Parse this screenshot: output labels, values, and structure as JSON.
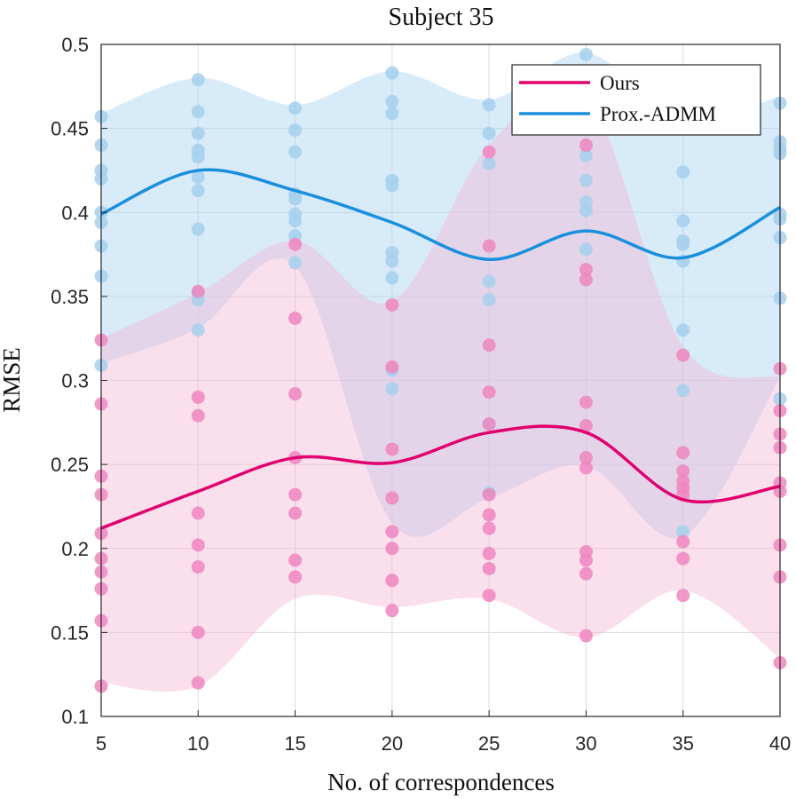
{
  "chart_data": {
    "type": "line",
    "title": "Subject 35",
    "xlabel": "No. of correspondences",
    "ylabel": "RMSE",
    "xlim": [
      5,
      40
    ],
    "ylim": [
      0.1,
      0.5
    ],
    "xticks": [
      5,
      10,
      15,
      20,
      25,
      30,
      35,
      40
    ],
    "yticks": [
      0.1,
      0.15,
      0.2,
      0.25,
      0.3,
      0.35,
      0.4,
      0.45,
      0.5
    ],
    "ytick_labels": [
      "0.1",
      "0.15",
      "0.2",
      "0.25",
      "0.3",
      "0.35",
      "0.4",
      "0.45",
      "0.5"
    ],
    "grid": true,
    "legend_position": "top-right",
    "x": [
      5,
      10,
      15,
      20,
      25,
      30,
      35,
      40
    ],
    "series": [
      {
        "name": "Prox.-ADMM",
        "color": "#1a8fdc",
        "fill_color": "#a9d3f2",
        "point_color": "#a6d0ec",
        "mean": [
          0.399,
          0.425,
          0.413,
          0.394,
          0.372,
          0.389,
          0.373,
          0.403
        ],
        "band_upper": [
          0.459,
          0.48,
          0.464,
          0.484,
          0.467,
          0.495,
          0.455,
          0.469
        ],
        "band_lower": [
          0.31,
          0.331,
          0.368,
          0.215,
          0.23,
          0.249,
          0.207,
          0.302
        ],
        "points": [
          [
            0.457,
            0.44,
            0.425,
            0.42,
            0.4,
            0.394,
            0.38,
            0.362,
            0.309
          ],
          [
            0.479,
            0.46,
            0.447,
            0.437,
            0.433,
            0.421,
            0.413,
            0.39,
            0.352,
            0.348,
            0.33
          ],
          [
            0.462,
            0.449,
            0.436,
            0.411,
            0.408,
            0.399,
            0.395,
            0.386,
            0.37
          ],
          [
            0.483,
            0.466,
            0.459,
            0.419,
            0.416,
            0.376,
            0.371,
            0.361,
            0.306,
            0.295
          ],
          [
            0.464,
            0.447,
            0.429,
            0.359,
            0.348,
            0.274,
            0.233
          ],
          [
            0.494,
            0.434,
            0.419,
            0.406,
            0.401,
            0.378
          ],
          [
            0.424,
            0.395,
            0.383,
            0.381,
            0.371,
            0.33,
            0.294,
            0.21
          ],
          [
            0.465,
            0.442,
            0.438,
            0.435,
            0.399,
            0.396,
            0.385,
            0.349,
            0.289
          ]
        ]
      },
      {
        "name": "Ours",
        "color": "#e0006e",
        "fill_color": "#f3b8d8",
        "point_color": "#ee86bf",
        "mean": [
          0.212,
          0.234,
          0.254,
          0.251,
          0.269,
          0.269,
          0.229,
          0.237
        ],
        "band_upper": [
          0.325,
          0.352,
          0.383,
          0.347,
          0.44,
          0.47,
          0.32,
          0.302
        ],
        "band_lower": [
          0.12,
          0.118,
          0.17,
          0.165,
          0.17,
          0.147,
          0.175,
          0.135
        ],
        "points": [
          [
            0.324,
            0.286,
            0.243,
            0.232,
            0.209,
            0.194,
            0.186,
            0.176,
            0.157,
            0.118
          ],
          [
            0.353,
            0.29,
            0.279,
            0.221,
            0.202,
            0.189,
            0.15,
            0.12
          ],
          [
            0.381,
            0.337,
            0.292,
            0.254,
            0.232,
            0.221,
            0.193,
            0.183
          ],
          [
            0.345,
            0.308,
            0.259,
            0.23,
            0.21,
            0.2,
            0.181,
            0.163
          ],
          [
            0.436,
            0.38,
            0.321,
            0.293,
            0.274,
            0.232,
            0.22,
            0.212,
            0.197,
            0.188,
            0.172
          ],
          [
            0.44,
            0.366,
            0.36,
            0.287,
            0.273,
            0.254,
            0.248,
            0.198,
            0.193,
            0.185,
            0.148
          ],
          [
            0.315,
            0.257,
            0.246,
            0.24,
            0.236,
            0.232,
            0.204,
            0.194,
            0.172
          ],
          [
            0.307,
            0.282,
            0.268,
            0.26,
            0.239,
            0.234,
            0.202,
            0.183,
            0.132
          ]
        ]
      }
    ]
  }
}
